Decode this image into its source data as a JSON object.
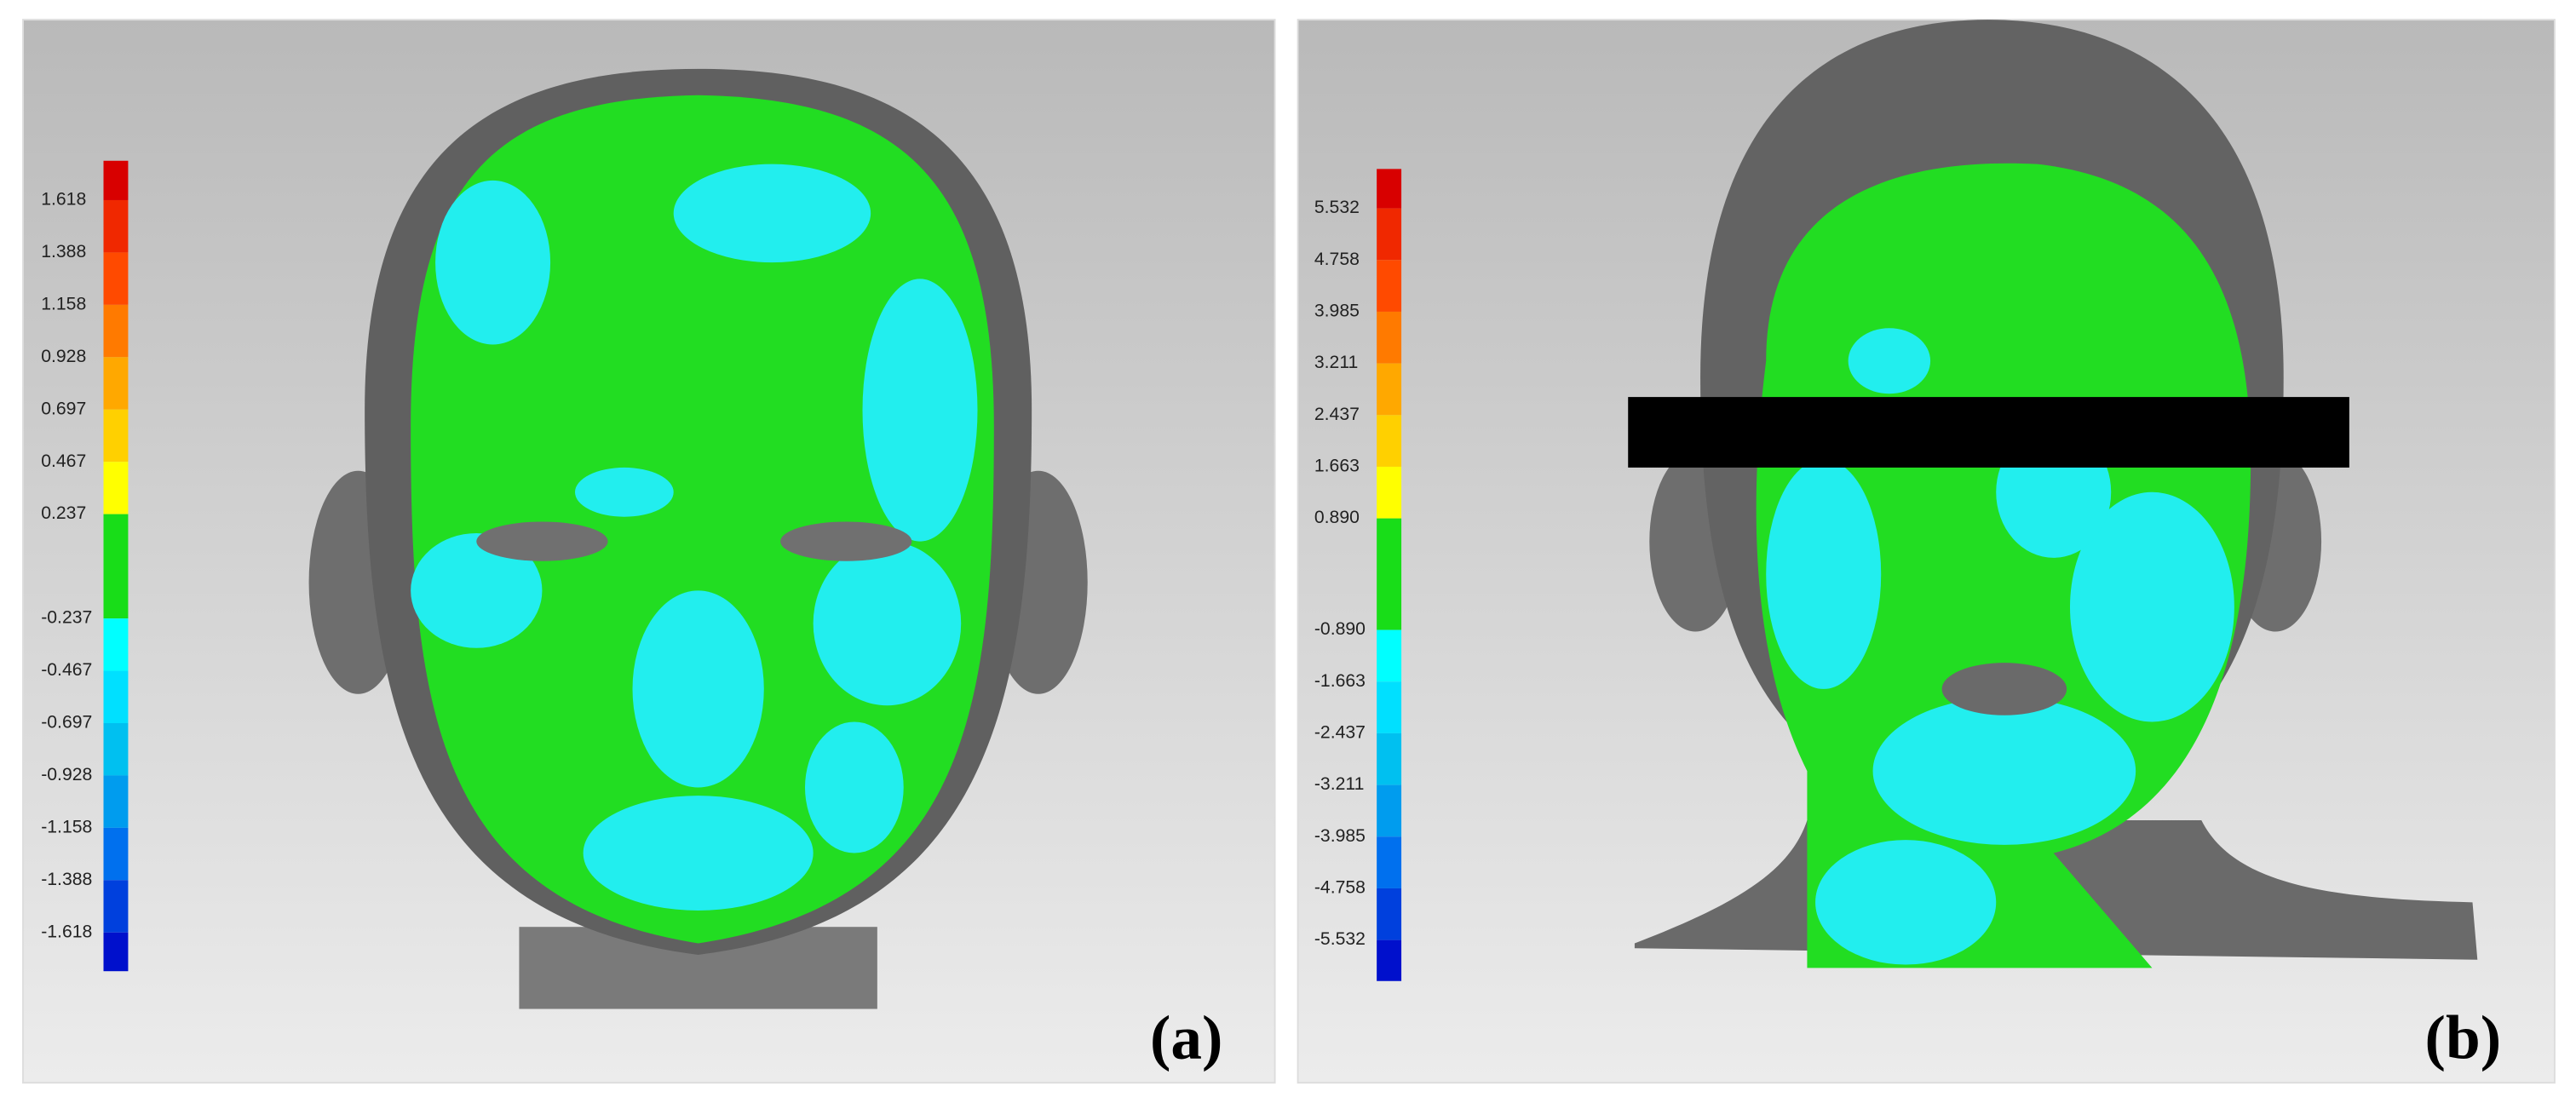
{
  "panels": [
    {
      "label": "(a)",
      "scale": [
        "1.618",
        "1.388",
        "1.158",
        "0.928",
        "0.697",
        "0.467",
        "0.237",
        "-0.237",
        "-0.467",
        "-0.697",
        "-0.928",
        "-1.158",
        "-1.388",
        "-1.618"
      ]
    },
    {
      "label": "(b)",
      "scale": [
        "5.532",
        "4.758",
        "3.985",
        "3.211",
        "2.437",
        "1.663",
        "0.890",
        "-0.890",
        "-1.663",
        "-2.437",
        "-3.211",
        "-3.985",
        "-4.758",
        "-5.532"
      ]
    }
  ]
}
